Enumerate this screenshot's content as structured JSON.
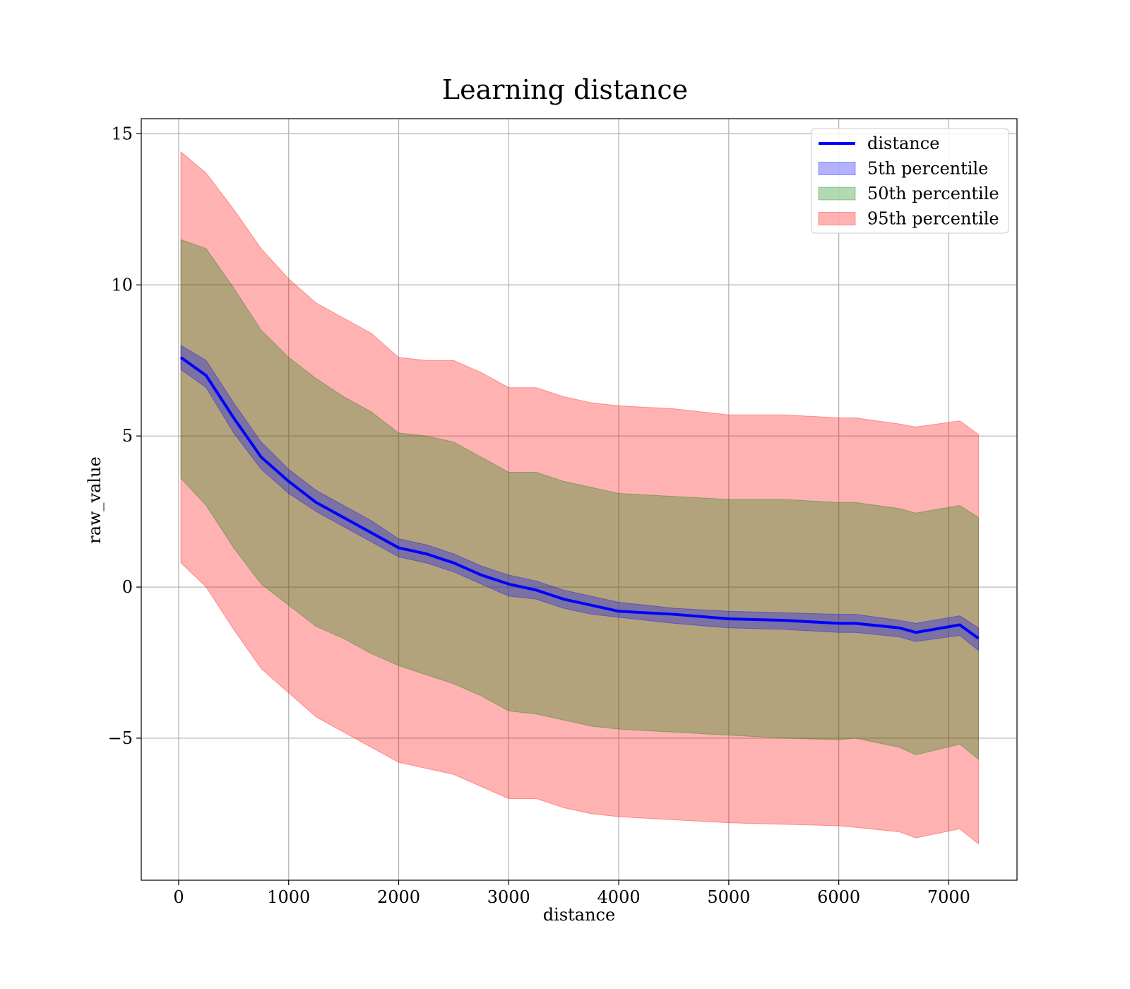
{
  "chart_data": {
    "type": "line",
    "title": "Learning distance",
    "xlabel": "distance",
    "ylabel": "raw_value",
    "xlim": [
      -340,
      7620
    ],
    "ylim": [
      -9.7,
      15.5
    ],
    "xticks": [
      0,
      1000,
      2000,
      3000,
      4000,
      5000,
      6000,
      7000
    ],
    "xtick_labels": [
      "0",
      "1000",
      "2000",
      "3000",
      "4000",
      "5000",
      "6000",
      "7000"
    ],
    "yticks": [
      -5,
      0,
      5,
      10,
      15
    ],
    "ytick_labels": [
      "−5",
      "0",
      "5",
      "10",
      "15"
    ],
    "grid": true,
    "legend_position": "top-right",
    "colors": {
      "line": "#0000ff",
      "band_5th": "#0000ff",
      "band_50th": "#008000",
      "band_95th": "#ff0000"
    },
    "x": [
      20,
      250,
      500,
      750,
      1000,
      1250,
      1500,
      1750,
      2000,
      2250,
      2500,
      2750,
      3000,
      3250,
      3500,
      3750,
      4000,
      4500,
      5000,
      5500,
      6000,
      6150,
      6550,
      6700,
      7100,
      7270
    ],
    "series": [
      {
        "name": "distance",
        "kind": "line",
        "values": [
          7.6,
          7.0,
          5.6,
          4.3,
          3.5,
          2.8,
          2.3,
          1.8,
          1.3,
          1.1,
          0.8,
          0.4,
          0.1,
          -0.1,
          -0.4,
          -0.6,
          -0.8,
          -0.9,
          -1.05,
          -1.1,
          -1.2,
          -1.2,
          -1.35,
          -1.5,
          -1.25,
          -1.7
        ]
      },
      {
        "name": "5th percentile",
        "kind": "band",
        "lower": [
          7.2,
          6.6,
          5.1,
          3.9,
          3.1,
          2.5,
          2.0,
          1.5,
          1.0,
          0.8,
          0.5,
          0.1,
          -0.3,
          -0.4,
          -0.7,
          -0.9,
          -1.0,
          -1.2,
          -1.35,
          -1.4,
          -1.5,
          -1.5,
          -1.65,
          -1.8,
          -1.6,
          -2.1
        ],
        "upper": [
          8.0,
          7.5,
          6.1,
          4.8,
          3.9,
          3.2,
          2.7,
          2.2,
          1.6,
          1.4,
          1.1,
          0.7,
          0.4,
          0.2,
          -0.1,
          -0.3,
          -0.5,
          -0.7,
          -0.8,
          -0.85,
          -0.9,
          -0.9,
          -1.1,
          -1.2,
          -0.95,
          -1.35
        ]
      },
      {
        "name": "50th percentile",
        "kind": "band",
        "lower": [
          3.6,
          2.7,
          1.3,
          0.1,
          -0.6,
          -1.3,
          -1.7,
          -2.2,
          -2.6,
          -2.9,
          -3.2,
          -3.6,
          -4.1,
          -4.2,
          -4.4,
          -4.6,
          -4.7,
          -4.8,
          -4.9,
          -5.0,
          -5.05,
          -5.0,
          -5.3,
          -5.55,
          -5.2,
          -5.7
        ],
        "upper": [
          11.5,
          11.2,
          9.9,
          8.5,
          7.6,
          6.9,
          6.3,
          5.8,
          5.1,
          5.0,
          4.8,
          4.3,
          3.8,
          3.8,
          3.5,
          3.3,
          3.1,
          3.0,
          2.9,
          2.9,
          2.8,
          2.8,
          2.6,
          2.45,
          2.7,
          2.3
        ]
      },
      {
        "name": "95th percentile",
        "kind": "band",
        "lower": [
          0.8,
          0.0,
          -1.4,
          -2.7,
          -3.5,
          -4.3,
          -4.8,
          -5.3,
          -5.8,
          -6.0,
          -6.2,
          -6.6,
          -7.0,
          -7.0,
          -7.3,
          -7.5,
          -7.6,
          -7.7,
          -7.8,
          -7.85,
          -7.9,
          -7.95,
          -8.1,
          -8.3,
          -8.0,
          -8.5
        ],
        "upper": [
          14.4,
          13.7,
          12.5,
          11.2,
          10.2,
          9.4,
          8.9,
          8.4,
          7.6,
          7.5,
          7.5,
          7.1,
          6.6,
          6.6,
          6.3,
          6.1,
          6.0,
          5.9,
          5.7,
          5.7,
          5.6,
          5.6,
          5.4,
          5.3,
          5.5,
          5.05
        ]
      }
    ]
  }
}
